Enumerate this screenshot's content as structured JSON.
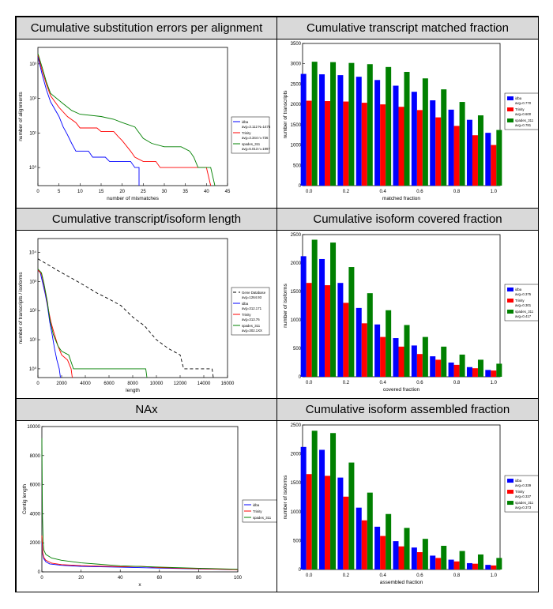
{
  "chart_data": [
    {
      "type": "line",
      "title": "Cumulative substitution errors per alignment",
      "xlabel": "number of mismatches",
      "ylabel": "number of alignments",
      "xlim": [
        0,
        45
      ],
      "ylim": [
        0.3,
        3000
      ],
      "yscale": "log",
      "xticks": [
        "0",
        "5",
        "10",
        "15",
        "20",
        "25",
        "30",
        "35",
        "40",
        "45"
      ],
      "yticks": [
        {
          "v": 1,
          "label": "10⁰"
        },
        {
          "v": 10,
          "label": "10¹"
        },
        {
          "v": 100,
          "label": "10²"
        },
        {
          "v": 1000,
          "label": "10³"
        }
      ],
      "legend": [
        "idba\navg=3.112 N=1475",
        "Trinity\navg=3.344 n=736",
        "spades_311\navg=5.013 n=1997"
      ],
      "series": [
        {
          "name": "idba",
          "color": "#0000ff",
          "points": [
            [
              0,
              1600
            ],
            [
              1,
              500
            ],
            [
              2,
              180
            ],
            [
              3,
              80
            ],
            [
              5,
              30
            ],
            [
              6,
              15
            ],
            [
              7,
              9
            ],
            [
              8,
              5
            ],
            [
              9,
              3
            ],
            [
              12,
              3
            ],
            [
              13,
              2
            ],
            [
              16,
              2
            ],
            [
              17,
              1.5
            ],
            [
              22,
              1.5
            ],
            [
              23,
              1
            ],
            [
              24,
              1
            ],
            [
              24,
              0.3
            ]
          ]
        },
        {
          "name": "Trinity",
          "color": "#ff0000",
          "points": [
            [
              0,
              1800
            ],
            [
              1,
              650
            ],
            [
              2,
              260
            ],
            [
              3,
              120
            ],
            [
              5,
              55
            ],
            [
              7,
              30
            ],
            [
              9,
              20
            ],
            [
              10,
              14
            ],
            [
              14,
              14
            ],
            [
              15,
              11
            ],
            [
              18,
              11
            ],
            [
              19,
              8
            ],
            [
              20,
              6
            ],
            [
              22,
              3
            ],
            [
              23,
              2
            ],
            [
              25,
              1.5
            ],
            [
              28,
              1.5
            ],
            [
              29,
              1
            ],
            [
              40,
              1
            ],
            [
              41,
              0.3
            ]
          ]
        },
        {
          "name": "spades_311",
          "color": "#008000",
          "points": [
            [
              0,
              2000
            ],
            [
              1,
              800
            ],
            [
              2,
              300
            ],
            [
              3,
              140
            ],
            [
              6,
              70
            ],
            [
              8,
              45
            ],
            [
              10,
              35
            ],
            [
              15,
              30
            ],
            [
              18,
              25
            ],
            [
              20,
              20
            ],
            [
              23,
              15
            ],
            [
              25,
              7
            ],
            [
              27,
              5
            ],
            [
              30,
              4
            ],
            [
              34,
              4
            ],
            [
              36,
              3
            ],
            [
              37,
              2
            ],
            [
              38,
              1
            ],
            [
              41,
              1
            ],
            [
              42,
              0.3
            ]
          ]
        }
      ]
    },
    {
      "type": "bar",
      "title": "Cumulative transcript matched fraction",
      "xlabel": "matched fraction",
      "ylabel": "number of transcripts",
      "ylim": [
        0,
        3500
      ],
      "categories": [
        "0.0",
        "0.1",
        "0.2",
        "0.3",
        "0.4",
        "0.5",
        "0.6",
        "0.7",
        "0.8",
        "0.9",
        "1.0"
      ],
      "xticks": [
        "0.0",
        "0.2",
        "0.4",
        "0.6",
        "0.8",
        "1.0"
      ],
      "yticks": [
        "0",
        "500",
        "1000",
        "1500",
        "2000",
        "2500",
        "3000",
        "3500"
      ],
      "legend": [
        "idba\navg=0.770",
        "Trinity\navg=0.600",
        "spades_311\navg=0.781"
      ],
      "series": [
        {
          "name": "idba",
          "color": "#0000ff",
          "values": [
            2750,
            2740,
            2720,
            2680,
            2600,
            2460,
            2310,
            2100,
            1870,
            1620,
            1300
          ]
        },
        {
          "name": "Trinity",
          "color": "#ff0000",
          "values": [
            2090,
            2080,
            2070,
            2040,
            2000,
            1940,
            1860,
            1680,
            1470,
            1240,
            1000
          ]
        },
        {
          "name": "spades_311",
          "color": "#008000",
          "values": [
            3050,
            3040,
            3020,
            2990,
            2920,
            2800,
            2640,
            2370,
            2060,
            1730,
            1370
          ]
        }
      ]
    },
    {
      "type": "line",
      "title": "Cumulative transcript/isoform length",
      "xlabel": "length",
      "ylabel": "number of transcripts / isoforms",
      "xlim": [
        0,
        16000
      ],
      "ylim": [
        0.5,
        30000
      ],
      "yscale": "log",
      "xticks": [
        "0",
        "2000",
        "4000",
        "6000",
        "8000",
        "10000",
        "12000",
        "14000",
        "16000"
      ],
      "yticks": [
        {
          "v": 1,
          "label": "10⁰"
        },
        {
          "v": 10,
          "label": "10¹"
        },
        {
          "v": 100,
          "label": "10²"
        },
        {
          "v": 1000,
          "label": "10³"
        },
        {
          "v": 10000,
          "label": "10⁴"
        }
      ],
      "legend": [
        "Gene Database\navg=1264.93",
        "idba\navg=312.171",
        "Trinity\navg=313.76",
        "spades_311\navg=302.1XX"
      ],
      "series": [
        {
          "name": "Gene Database",
          "color": "#000000",
          "dash": "4,3",
          "points": [
            [
              0,
              6000
            ],
            [
              1000,
              3500
            ],
            [
              2000,
              2000
            ],
            [
              3000,
              1200
            ],
            [
              4000,
              700
            ],
            [
              5000,
              400
            ],
            [
              6000,
              250
            ],
            [
              7000,
              150
            ],
            [
              8000,
              60
            ],
            [
              9000,
              30
            ],
            [
              10000,
              10
            ],
            [
              11000,
              5
            ],
            [
              12000,
              3
            ],
            [
              12300,
              1
            ],
            [
              14700,
              1
            ],
            [
              14800,
              0.5
            ]
          ]
        },
        {
          "name": "idba",
          "color": "#0000ff",
          "points": [
            [
              0,
              2500
            ],
            [
              200,
              2000
            ],
            [
              400,
              900
            ],
            [
              600,
              400
            ],
            [
              800,
              150
            ],
            [
              1000,
              40
            ],
            [
              1200,
              15
            ],
            [
              1400,
              5
            ],
            [
              1600,
              2
            ],
            [
              1800,
              1
            ],
            [
              1900,
              0.5
            ]
          ]
        },
        {
          "name": "Trinity",
          "color": "#ff0000",
          "points": [
            [
              0,
              2500
            ],
            [
              300,
              1800
            ],
            [
              500,
              800
            ],
            [
              700,
              300
            ],
            [
              900,
              100
            ],
            [
              1100,
              40
            ],
            [
              1400,
              15
            ],
            [
              1700,
              6
            ],
            [
              2000,
              3
            ],
            [
              2500,
              2
            ],
            [
              2800,
              1
            ],
            [
              2900,
              0.5
            ]
          ]
        },
        {
          "name": "spades_311",
          "color": "#008000",
          "points": [
            [
              0,
              2700
            ],
            [
              300,
              2000
            ],
            [
              500,
              900
            ],
            [
              800,
              200
            ],
            [
              1000,
              50
            ],
            [
              1300,
              15
            ],
            [
              1700,
              6
            ],
            [
              2000,
              4
            ],
            [
              2600,
              3
            ],
            [
              3000,
              1
            ],
            [
              9100,
              1
            ],
            [
              9200,
              0.5
            ]
          ]
        }
      ]
    },
    {
      "type": "bar",
      "title": "Cumulative isoform covered fraction",
      "xlabel": "covered fraction",
      "ylabel": "number of isoforms",
      "ylim": [
        0,
        2500
      ],
      "categories": [
        "0.0",
        "0.1",
        "0.2",
        "0.3",
        "0.4",
        "0.5",
        "0.6",
        "0.7",
        "0.8",
        "0.9",
        "1.0"
      ],
      "xticks": [
        "0.0",
        "0.2",
        "0.4",
        "0.6",
        "0.8",
        "1.0"
      ],
      "yticks": [
        "0",
        "500",
        "1000",
        "1500",
        "2000",
        "2500"
      ],
      "legend": [
        "idba\navg=0.375",
        "Trinity\navg=0.301",
        "spades_311\navg=0.417"
      ],
      "series": [
        {
          "name": "idba",
          "color": "#0000ff",
          "values": [
            2120,
            2070,
            1650,
            1210,
            920,
            680,
            550,
            360,
            250,
            170,
            120
          ]
        },
        {
          "name": "Trinity",
          "color": "#ff0000",
          "values": [
            1650,
            1610,
            1300,
            940,
            700,
            530,
            400,
            300,
            210,
            150,
            110
          ]
        },
        {
          "name": "spades_311",
          "color": "#008000",
          "values": [
            2410,
            2360,
            1930,
            1470,
            1170,
            910,
            700,
            530,
            390,
            300,
            230
          ]
        }
      ]
    },
    {
      "type": "line",
      "title": "NAx",
      "xlabel": "x",
      "ylabel": "Contig length",
      "xlim": [
        0,
        100
      ],
      "ylim": [
        0,
        10000
      ],
      "xticks": [
        "0",
        "20",
        "40",
        "60",
        "80",
        "100"
      ],
      "yticks": [
        "0",
        "2000",
        "4000",
        "6000",
        "8000",
        "10000"
      ],
      "legend": [
        "idba",
        "Trinity",
        "spades_311"
      ],
      "series": [
        {
          "name": "idba",
          "color": "#0000ff",
          "points": [
            [
              0,
              2000
            ],
            [
              0.5,
              1200
            ],
            [
              1,
              900
            ],
            [
              2,
              700
            ],
            [
              4,
              550
            ],
            [
              10,
              450
            ],
            [
              20,
              380
            ],
            [
              40,
              320
            ],
            [
              60,
              260
            ],
            [
              80,
              200
            ],
            [
              100,
              150
            ]
          ]
        },
        {
          "name": "Trinity",
          "color": "#ff0000",
          "points": [
            [
              0,
              2500
            ],
            [
              0.5,
              1300
            ],
            [
              1,
              1000
            ],
            [
              2,
              800
            ],
            [
              5,
              600
            ],
            [
              10,
              500
            ],
            [
              20,
              430
            ],
            [
              40,
              360
            ],
            [
              50,
              380
            ],
            [
              60,
              300
            ],
            [
              80,
              220
            ],
            [
              100,
              150
            ]
          ]
        },
        {
          "name": "spades_311",
          "color": "#008000",
          "points": [
            [
              0,
              9200
            ],
            [
              0.3,
              4000
            ],
            [
              0.7,
              2000
            ],
            [
              1,
              1500
            ],
            [
              2,
              1200
            ],
            [
              5,
              950
            ],
            [
              10,
              800
            ],
            [
              20,
              620
            ],
            [
              40,
              420
            ],
            [
              60,
              330
            ],
            [
              80,
              250
            ],
            [
              100,
              180
            ]
          ]
        }
      ]
    },
    {
      "type": "bar",
      "title": "Cumulative isoform assembled fraction",
      "xlabel": "assembled fraction",
      "ylabel": "number of isoforms",
      "ylim": [
        0,
        2500
      ],
      "categories": [
        "0.0",
        "0.1",
        "0.2",
        "0.3",
        "0.4",
        "0.5",
        "0.6",
        "0.7",
        "0.8",
        "0.9",
        "1.0"
      ],
      "xticks": [
        "0.0",
        "0.2",
        "0.4",
        "0.6",
        "0.8",
        "1.0"
      ],
      "yticks": [
        "0",
        "500",
        "1000",
        "1500",
        "2000",
        "2500"
      ],
      "legend": [
        "idba\navg=0.339",
        "Trinity\navg=0.337",
        "spades_311\navg=0.373"
      ],
      "series": [
        {
          "name": "idba",
          "color": "#0000ff",
          "values": [
            2120,
            2070,
            1590,
            1070,
            740,
            490,
            380,
            240,
            170,
            110,
            80
          ]
        },
        {
          "name": "Trinity",
          "color": "#ff0000",
          "values": [
            1650,
            1620,
            1260,
            850,
            580,
            400,
            300,
            200,
            140,
            100,
            70
          ]
        },
        {
          "name": "spades_311",
          "color": "#008000",
          "values": [
            2400,
            2360,
            1850,
            1330,
            960,
            720,
            530,
            410,
            320,
            260,
            200
          ]
        }
      ]
    }
  ]
}
